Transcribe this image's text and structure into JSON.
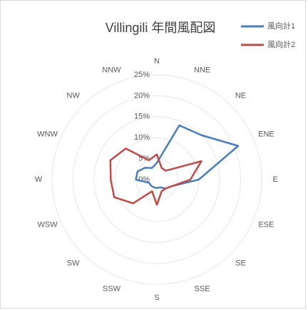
{
  "chart_data": {
    "type": "radar",
    "title": "Villingili 年間風配図",
    "categories": [
      "N",
      "NNE",
      "NE",
      "ENE",
      "E",
      "ESE",
      "SE",
      "SSE",
      "S",
      "SSW",
      "SW",
      "WSW",
      "W",
      "WNW",
      "NW",
      "NNW"
    ],
    "series": [
      {
        "name": "風向計1",
        "color": "#4a7ebb",
        "values": [
          4,
          14,
          15,
          21,
          10,
          4,
          3,
          2,
          2,
          2,
          2,
          2,
          5,
          5,
          4,
          3
        ]
      },
      {
        "name": "風向計2",
        "color": "#be4b48",
        "values": [
          6,
          3,
          3,
          11.5,
          8,
          4,
          3,
          3,
          6,
          3,
          8,
          11,
          11,
          12,
          10.5,
          5
        ]
      }
    ],
    "ylim": [
      0,
      25
    ],
    "yticks": [
      {
        "value": 0,
        "label": "0%"
      },
      {
        "value": 5,
        "label": "5%"
      },
      {
        "value": 10,
        "label": "10%"
      },
      {
        "value": 15,
        "label": "15%"
      },
      {
        "value": 20,
        "label": "20%"
      },
      {
        "value": 25,
        "label": "25%"
      }
    ],
    "grid": true,
    "legend": "top-right"
  }
}
